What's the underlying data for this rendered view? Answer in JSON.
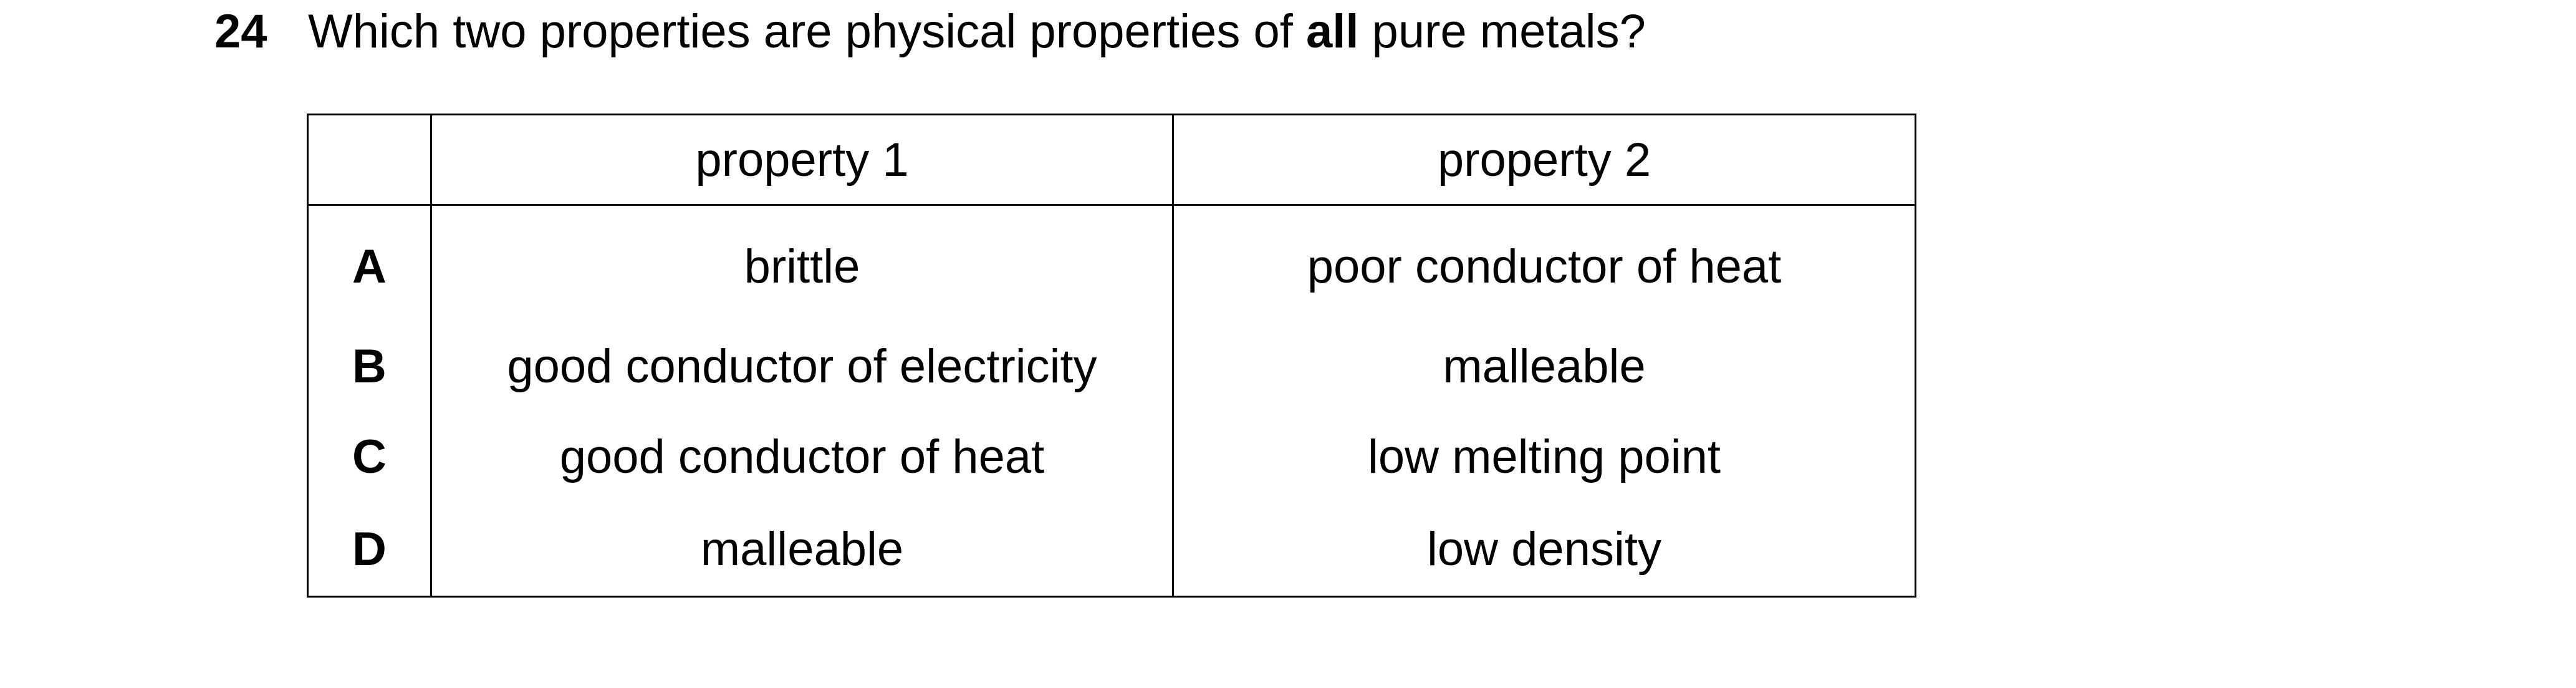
{
  "question": {
    "number": "24",
    "text_before": "Which two properties are physical properties of ",
    "text_bold": "all",
    "text_after": " pure metals?"
  },
  "table": {
    "headers": [
      "",
      "property 1",
      "property 2"
    ],
    "rows": [
      {
        "letter": "A",
        "property1": "brittle",
        "property2": "poor conductor of heat"
      },
      {
        "letter": "B",
        "property1": "good conductor of electricity",
        "property2": "malleable"
      },
      {
        "letter": "C",
        "property1": "good conductor of heat",
        "property2": "low melting point"
      },
      {
        "letter": "D",
        "property1": "malleable",
        "property2": "low density"
      }
    ]
  }
}
